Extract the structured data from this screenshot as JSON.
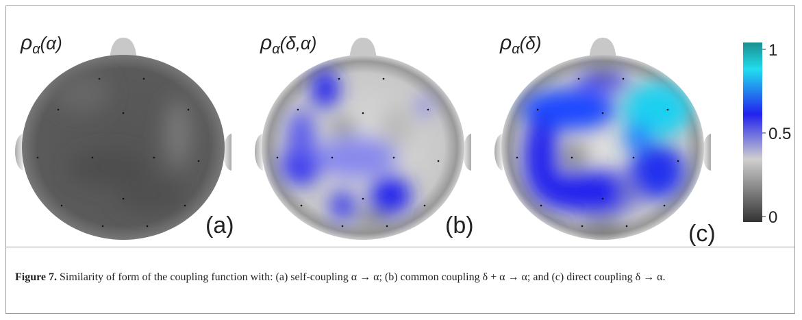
{
  "panels": [
    {
      "title": {
        "base": "ρ",
        "sub": "α",
        "arg": "(α)"
      },
      "label": "(a)"
    },
    {
      "title": {
        "base": "ρ",
        "sub": "α",
        "arg": "(δ,α)"
      },
      "label": "(b)"
    },
    {
      "title": {
        "base": "ρ",
        "sub": "α",
        "arg": "(δ)"
      },
      "label": "(c)"
    }
  ],
  "colorbar": {
    "ticks": [
      0,
      0.5,
      1
    ]
  },
  "caption": {
    "label": "Figure 7.",
    "text": "Similarity of form of the coupling function with: (a) self-coupling α → α; (b) common coupling δ + α → α; and (c) direct coupling δ → α."
  }
}
